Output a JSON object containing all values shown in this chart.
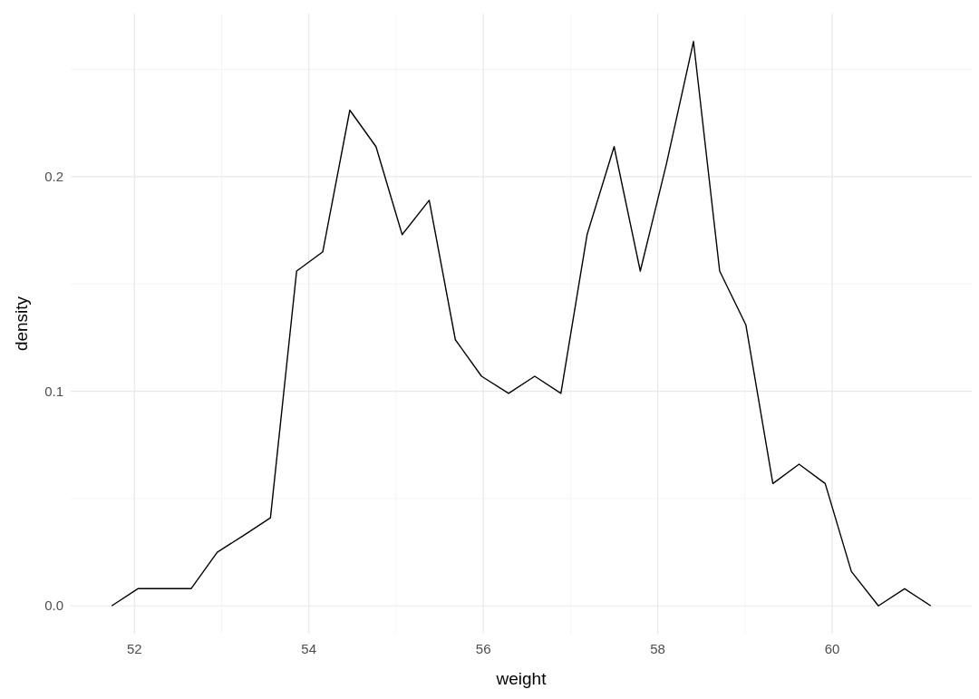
{
  "chart_data": {
    "type": "line",
    "xlabel": "weight",
    "ylabel": "density",
    "x": [
      51.74,
      52.04,
      52.35,
      52.65,
      52.95,
      53.26,
      53.56,
      53.86,
      54.16,
      54.47,
      54.77,
      55.07,
      55.38,
      55.68,
      55.98,
      56.29,
      56.59,
      56.89,
      57.19,
      57.5,
      57.8,
      58.1,
      58.41,
      58.71,
      59.01,
      59.32,
      59.62,
      59.92,
      60.22,
      60.53,
      60.83,
      61.13
    ],
    "series": [
      {
        "color": "#000000",
        "values": [
          0,
          0.008,
          0.008,
          0.008,
          0.025,
          0.033,
          0.041,
          0.156,
          0.165,
          0.231,
          0.214,
          0.173,
          0.189,
          0.124,
          0.107,
          0.099,
          0.107,
          0.099,
          0.173,
          0.214,
          0.156,
          0.206,
          0.263,
          0.156,
          0.131,
          0.057,
          0.066,
          0.057,
          0.016,
          0,
          0.008,
          0
        ]
      }
    ],
    "xlim": [
      51.27,
      61.6
    ],
    "ylim": [
      -0.013,
      0.276
    ],
    "xticks": [
      52,
      54,
      56,
      58,
      60
    ],
    "yticks": [
      {
        "value": 0,
        "label": "0.0"
      },
      {
        "value": 0.1,
        "label": "0.1"
      },
      {
        "value": 0.2,
        "label": "0.2"
      }
    ],
    "grid": true,
    "marker": "none",
    "line_style": "solid"
  }
}
